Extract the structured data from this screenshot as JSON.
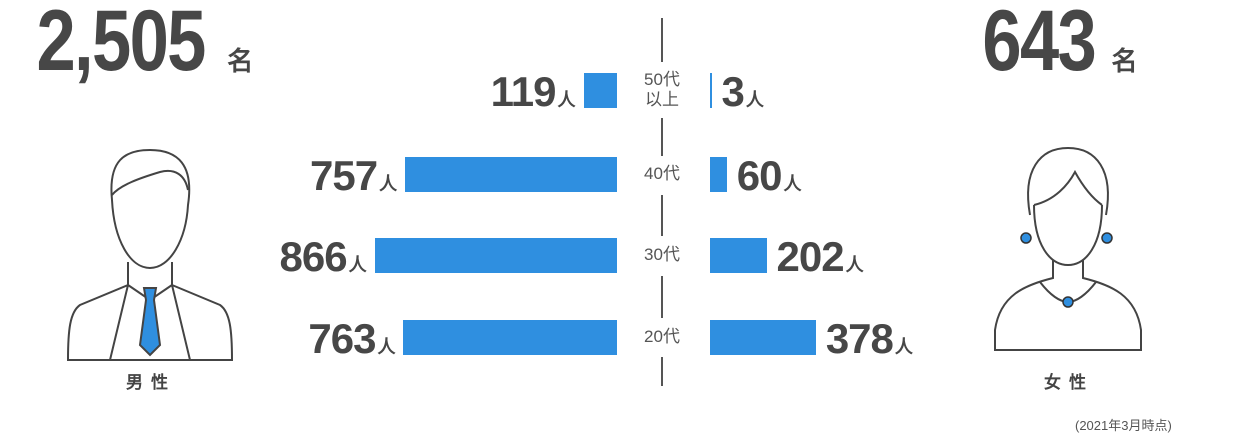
{
  "chart_data": {
    "type": "butterfly-bar",
    "categories": [
      "50代\n以上",
      "40代",
      "30代",
      "20代"
    ],
    "unit": "人",
    "total_unit": "名",
    "series": [
      {
        "name": "男性",
        "color": "#2f8fe0",
        "values": [
          119,
          757,
          866,
          763
        ],
        "total": {
          "value": 2505,
          "label": "2,505"
        }
      },
      {
        "name": "女性",
        "color": "#2f8fe0",
        "values": [
          3,
          60,
          202,
          378
        ],
        "total": 643
      }
    ],
    "note": "(2021年3月時点)"
  }
}
